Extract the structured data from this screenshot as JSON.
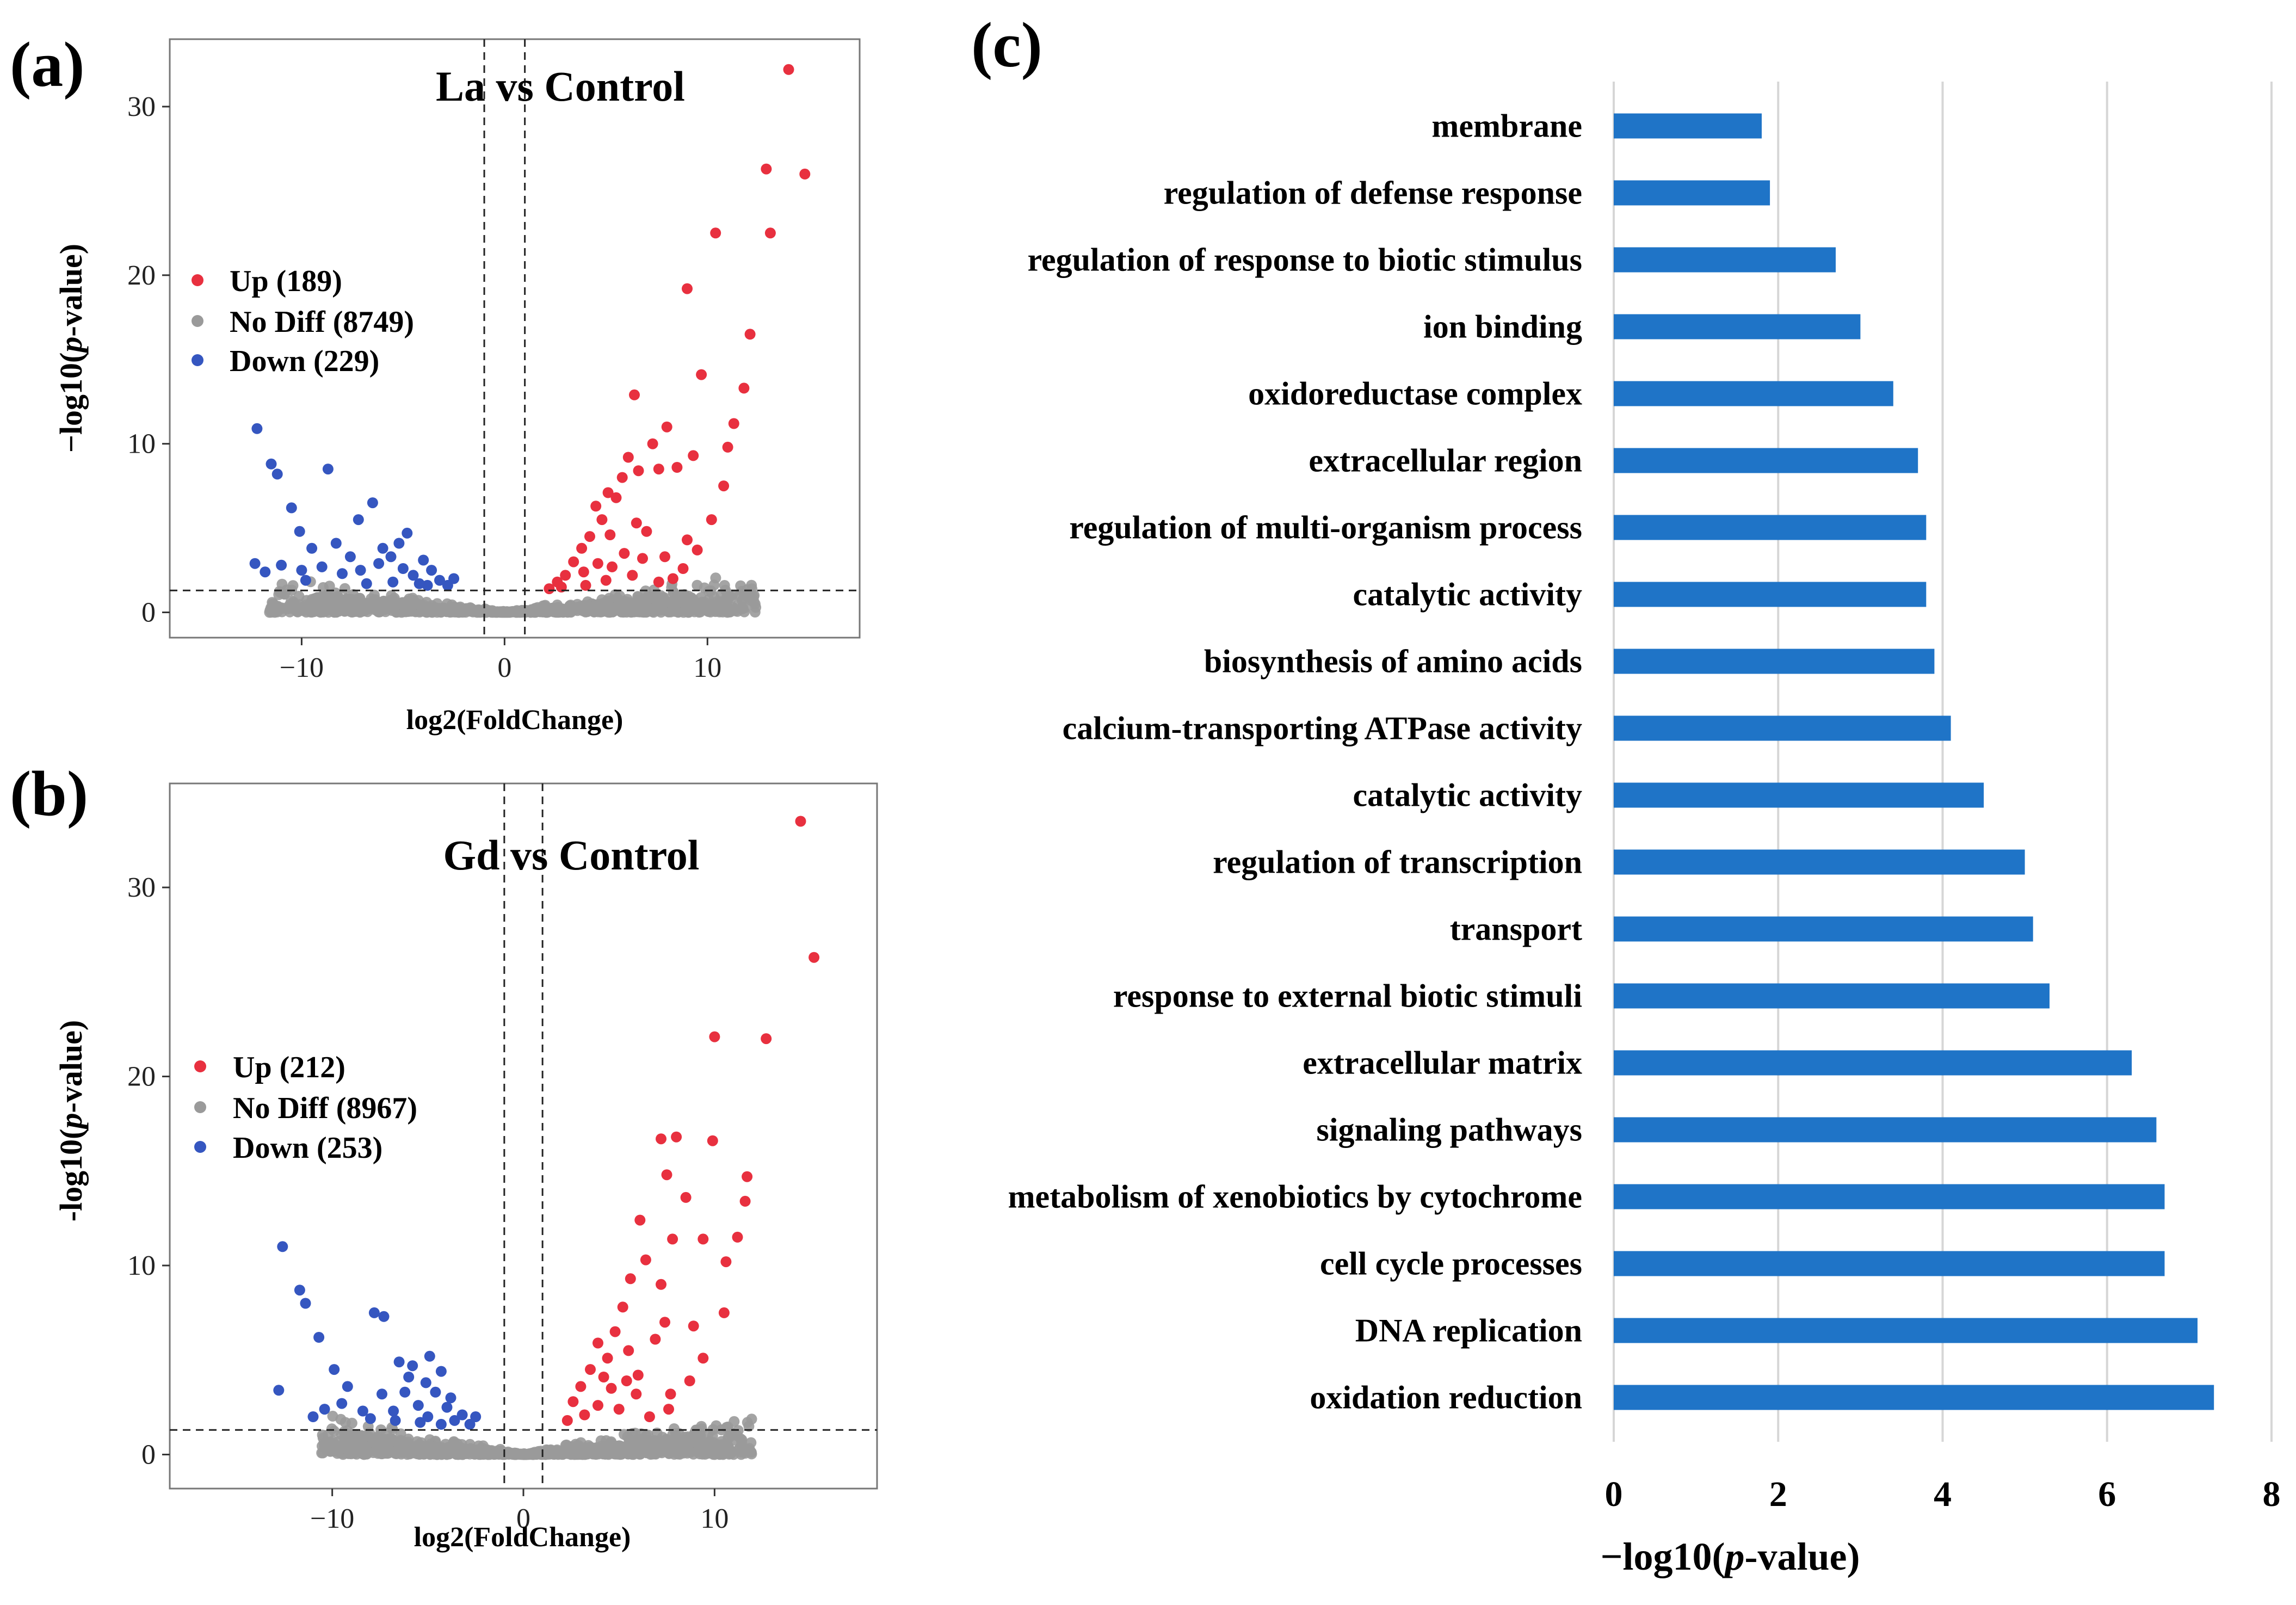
{
  "panel_labels": {
    "a": "(a)",
    "b": "(b)",
    "c": "(c)"
  },
  "chart_data": [
    {
      "type": "scatter",
      "id": "a",
      "title": "La vs Control",
      "xlabel": "log2(FoldChange)",
      "ylabel_pre": "−log10(",
      "ylabel_italic": "p",
      "ylabel_post": "-value)",
      "xlim": [
        -16.5,
        17.5
      ],
      "ylim": [
        -1.5,
        34
      ],
      "xticks": [
        -10,
        0,
        10
      ],
      "yticks": [
        0,
        10,
        20,
        30
      ],
      "fc_threshold": 1,
      "p_threshold_line": 1.3,
      "legend": [
        {
          "name": "Up (189)",
          "color": "#e8303f"
        },
        {
          "name": "No Diff (8749)",
          "color": "#9a9a9a"
        },
        {
          "name": "Down (229)",
          "color": "#3556c0"
        }
      ],
      "up_points": [
        [
          14.0,
          32.2
        ],
        [
          14.8,
          26.0
        ],
        [
          12.9,
          26.3
        ],
        [
          13.1,
          22.5
        ],
        [
          10.4,
          22.5
        ],
        [
          9.0,
          19.2
        ],
        [
          12.1,
          16.5
        ],
        [
          11.8,
          13.3
        ],
        [
          9.7,
          14.1
        ],
        [
          6.4,
          12.9
        ],
        [
          8.0,
          11.0
        ],
        [
          7.3,
          10.0
        ],
        [
          9.3,
          9.3
        ],
        [
          11.0,
          9.8
        ],
        [
          8.5,
          8.6
        ],
        [
          6.6,
          8.4
        ],
        [
          6.1,
          9.2
        ],
        [
          7.6,
          8.5
        ],
        [
          5.8,
          8.0
        ],
        [
          5.1,
          7.1
        ],
        [
          4.5,
          6.3
        ],
        [
          5.5,
          6.8
        ],
        [
          4.8,
          5.5
        ],
        [
          5.2,
          4.6
        ],
        [
          6.5,
          5.3
        ],
        [
          7.0,
          4.8
        ],
        [
          4.2,
          4.5
        ],
        [
          3.8,
          3.8
        ],
        [
          5.9,
          3.5
        ],
        [
          3.4,
          3.0
        ],
        [
          4.6,
          2.9
        ],
        [
          6.8,
          3.2
        ],
        [
          7.9,
          3.3
        ],
        [
          3.0,
          2.2
        ],
        [
          2.6,
          1.8
        ],
        [
          3.9,
          2.4
        ],
        [
          5.3,
          2.7
        ],
        [
          8.8,
          2.6
        ],
        [
          9.5,
          3.7
        ],
        [
          10.2,
          5.5
        ],
        [
          10.8,
          7.5
        ],
        [
          11.3,
          11.2
        ],
        [
          8.3,
          2.0
        ],
        [
          7.6,
          1.8
        ],
        [
          6.3,
          2.2
        ],
        [
          2.2,
          1.4
        ],
        [
          2.8,
          1.5
        ],
        [
          4.0,
          1.6
        ],
        [
          5.0,
          1.9
        ],
        [
          9.0,
          4.3
        ]
      ],
      "down_points": [
        [
          -12.2,
          10.9
        ],
        [
          -11.5,
          8.8
        ],
        [
          -11.2,
          8.2
        ],
        [
          -10.5,
          6.2
        ],
        [
          -8.7,
          8.5
        ],
        [
          -6.5,
          6.5
        ],
        [
          -7.2,
          5.5
        ],
        [
          -4.8,
          4.7
        ],
        [
          -10.1,
          4.8
        ],
        [
          -9.5,
          3.8
        ],
        [
          -8.3,
          4.1
        ],
        [
          -7.6,
          3.3
        ],
        [
          -11.0,
          2.8
        ],
        [
          -10.0,
          2.5
        ],
        [
          -9.0,
          2.7
        ],
        [
          -8.0,
          2.3
        ],
        [
          -7.1,
          2.5
        ],
        [
          -6.2,
          2.9
        ],
        [
          -5.6,
          3.3
        ],
        [
          -5.0,
          2.6
        ],
        [
          -4.5,
          2.2
        ],
        [
          -4.0,
          3.1
        ],
        [
          -3.6,
          2.5
        ],
        [
          -3.2,
          1.9
        ],
        [
          -2.8,
          1.6
        ],
        [
          -2.5,
          2.0
        ],
        [
          -4.2,
          1.7
        ],
        [
          -5.5,
          1.8
        ],
        [
          -6.8,
          1.7
        ],
        [
          -11.8,
          2.4
        ],
        [
          -12.3,
          2.9
        ],
        [
          -9.8,
          1.9
        ],
        [
          -3.8,
          1.6
        ],
        [
          -5.2,
          4.1
        ],
        [
          -6.0,
          3.8
        ]
      ],
      "nodiff_band": {
        "xmin": -11.6,
        "xmax": 12.4,
        "ymax": 2.2
      }
    },
    {
      "type": "scatter",
      "id": "b",
      "title": "Gd vs Control",
      "xlabel": "log2(FoldChange)",
      "ylabel_pre": "-log10(",
      "ylabel_italic": "p",
      "ylabel_post": "-value)",
      "xlim": [
        -18.5,
        18.5
      ],
      "ylim": [
        -1.8,
        35.5
      ],
      "xticks": [
        -10,
        0,
        10
      ],
      "yticks": [
        0,
        10,
        20,
        30
      ],
      "fc_threshold": 1,
      "p_threshold_line": 1.3,
      "legend": [
        {
          "name": "Up (212)",
          "color": "#e8303f"
        },
        {
          "name": "No Diff (8967)",
          "color": "#9a9a9a"
        },
        {
          "name": "Down (253)",
          "color": "#3556c0"
        }
      ],
      "up_points": [
        [
          14.5,
          33.5
        ],
        [
          15.2,
          26.3
        ],
        [
          10.0,
          22.1
        ],
        [
          12.7,
          22.0
        ],
        [
          7.2,
          16.7
        ],
        [
          8.0,
          16.8
        ],
        [
          9.9,
          16.6
        ],
        [
          7.5,
          14.8
        ],
        [
          11.7,
          14.7
        ],
        [
          8.5,
          13.6
        ],
        [
          6.1,
          12.4
        ],
        [
          7.8,
          11.4
        ],
        [
          9.4,
          11.4
        ],
        [
          6.4,
          10.3
        ],
        [
          10.6,
          10.2
        ],
        [
          5.6,
          9.3
        ],
        [
          7.2,
          9.0
        ],
        [
          5.2,
          7.8
        ],
        [
          7.4,
          7.0
        ],
        [
          4.8,
          6.5
        ],
        [
          3.9,
          5.9
        ],
        [
          5.5,
          5.5
        ],
        [
          4.4,
          5.1
        ],
        [
          3.5,
          4.5
        ],
        [
          6.0,
          4.2
        ],
        [
          3.0,
          3.6
        ],
        [
          4.6,
          3.5
        ],
        [
          5.9,
          3.2
        ],
        [
          2.6,
          2.8
        ],
        [
          3.9,
          2.6
        ],
        [
          7.6,
          2.4
        ],
        [
          8.7,
          3.9
        ],
        [
          9.4,
          5.1
        ],
        [
          10.5,
          7.5
        ],
        [
          11.2,
          11.5
        ],
        [
          11.6,
          13.4
        ],
        [
          2.3,
          1.8
        ],
        [
          3.2,
          2.1
        ],
        [
          5.0,
          2.4
        ],
        [
          6.6,
          2.0
        ],
        [
          7.7,
          3.2
        ],
        [
          8.9,
          6.8
        ],
        [
          6.9,
          6.1
        ],
        [
          4.2,
          4.1
        ],
        [
          5.4,
          3.9
        ]
      ],
      "down_points": [
        [
          -12.8,
          3.4
        ],
        [
          -12.6,
          11.0
        ],
        [
          -11.7,
          8.7
        ],
        [
          -11.4,
          8.0
        ],
        [
          -10.7,
          6.2
        ],
        [
          -9.9,
          4.5
        ],
        [
          -9.2,
          3.6
        ],
        [
          -7.8,
          7.5
        ],
        [
          -7.3,
          7.3
        ],
        [
          -6.5,
          4.9
        ],
        [
          -5.8,
          4.7
        ],
        [
          -4.9,
          5.2
        ],
        [
          -4.3,
          4.4
        ],
        [
          -10.4,
          2.4
        ],
        [
          -9.5,
          2.7
        ],
        [
          -8.4,
          2.3
        ],
        [
          -7.4,
          3.2
        ],
        [
          -6.8,
          2.3
        ],
        [
          -6.2,
          3.3
        ],
        [
          -5.5,
          2.6
        ],
        [
          -5.0,
          2.0
        ],
        [
          -4.6,
          3.3
        ],
        [
          -4.0,
          2.5
        ],
        [
          -3.6,
          1.8
        ],
        [
          -3.2,
          2.1
        ],
        [
          -2.8,
          1.6
        ],
        [
          -2.5,
          2.0
        ],
        [
          -4.3,
          1.6
        ],
        [
          -5.4,
          1.7
        ],
        [
          -6.7,
          1.8
        ],
        [
          -11.0,
          2.0
        ],
        [
          -8.0,
          1.9
        ],
        [
          -3.8,
          3.0
        ],
        [
          -5.1,
          3.8
        ],
        [
          -6.0,
          4.1
        ]
      ],
      "nodiff_band": {
        "xmin": -10.6,
        "xmax": 12.0,
        "ymax": 2.3
      }
    },
    {
      "type": "bar",
      "id": "c",
      "orientation": "horizontal",
      "xlabel_pre": "−log10(",
      "xlabel_italic": "p",
      "xlabel_post": "-value)",
      "xlim": [
        0,
        8
      ],
      "xticks": [
        0,
        2,
        4,
        6,
        8
      ],
      "bar_color": "#1f74c7",
      "grid": true,
      "categories": [
        "membrane",
        "regulation of defense response",
        "regulation of response to biotic stimulus",
        "ion binding",
        "oxidoreductase complex",
        "extracellular region",
        "regulation of multi-organism process",
        "catalytic activity",
        "biosynthesis of amino acids",
        "calcium-transporting ATPase activity",
        "catalytic activity",
        "regulation of transcription",
        "transport",
        "response to external biotic stimuli",
        "extracellular matrix",
        "signaling pathways",
        "metabolism of xenobiotics by cytochrome",
        "cell cycle processes",
        "DNA replication",
        "oxidation reduction"
      ],
      "values": [
        1.8,
        1.9,
        2.7,
        3.0,
        3.4,
        3.7,
        3.8,
        3.8,
        3.9,
        4.1,
        4.5,
        5.0,
        5.1,
        5.3,
        6.3,
        6.6,
        6.7,
        6.7,
        7.1,
        7.3
      ]
    }
  ]
}
